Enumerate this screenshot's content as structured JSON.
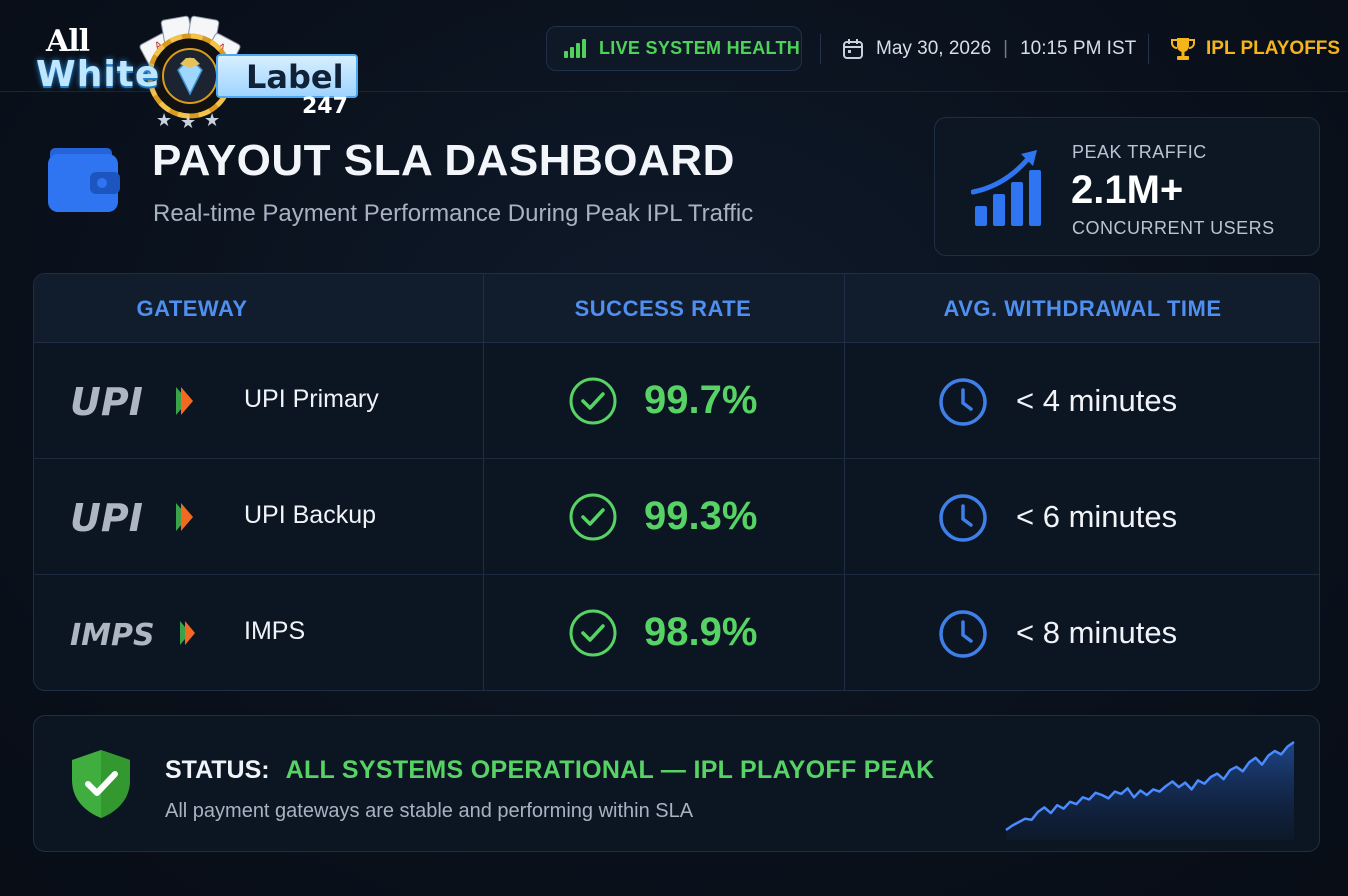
{
  "brand": {
    "line1": "All",
    "line2": "White",
    "line3": "Label",
    "line4": "247"
  },
  "topbar": {
    "health_label": "LIVE SYSTEM HEALTH",
    "date": "May 30, 2026",
    "time": "10:15 PM IST",
    "event_label": "IPL PLAYOFFS"
  },
  "header": {
    "title": "PAYOUT SLA DASHBOARD",
    "subtitle": "Real-time Payment Performance During Peak IPL Traffic"
  },
  "peak": {
    "label": "PEAK TRAFFIC",
    "value": "2.1M+",
    "sub": "CONCURRENT USERS"
  },
  "table": {
    "headers": [
      "GATEWAY",
      "SUCCESS RATE",
      "AVG. WITHDRAWAL TIME"
    ],
    "rows": [
      {
        "logo": "UPI",
        "name": "UPI Primary",
        "rate": "99.7%",
        "time": "< 4 minutes"
      },
      {
        "logo": "UPI",
        "name": "UPI Backup",
        "rate": "99.3%",
        "time": "< 6 minutes"
      },
      {
        "logo": "IMPS",
        "name": "IMPS",
        "rate": "98.9%",
        "time": "< 8 minutes"
      }
    ]
  },
  "status": {
    "key": "STATUS:",
    "value": "ALL SYSTEMS OPERATIONAL — IPL PLAYOFF PEAK",
    "description": "All payment gateways are stable and performing within SLA"
  },
  "colors": {
    "accent_blue": "#4f8ff0",
    "success_green": "#56d364",
    "gold": "#f4b41a",
    "upi_orange": "#f26a21",
    "upi_green": "#3aa34a"
  },
  "icons": {
    "health": "signal-bars-icon",
    "date": "calendar-icon",
    "event": "trophy-icon",
    "header": "wallet-icon",
    "peak": "growth-chart-icon",
    "rate": "check-circle-icon",
    "time": "clock-icon",
    "status": "shield-check-icon"
  },
  "sparkline": {
    "values": [
      2,
      6,
      9,
      12,
      11,
      18,
      22,
      17,
      24,
      21,
      27,
      25,
      31,
      29,
      35,
      33,
      30,
      36,
      34,
      39,
      31,
      37,
      33,
      38,
      36,
      41,
      45,
      40,
      44,
      38,
      46,
      43,
      49,
      52,
      47,
      55,
      58,
      54,
      62,
      66,
      60,
      68,
      72,
      69,
      76,
      80
    ]
  }
}
